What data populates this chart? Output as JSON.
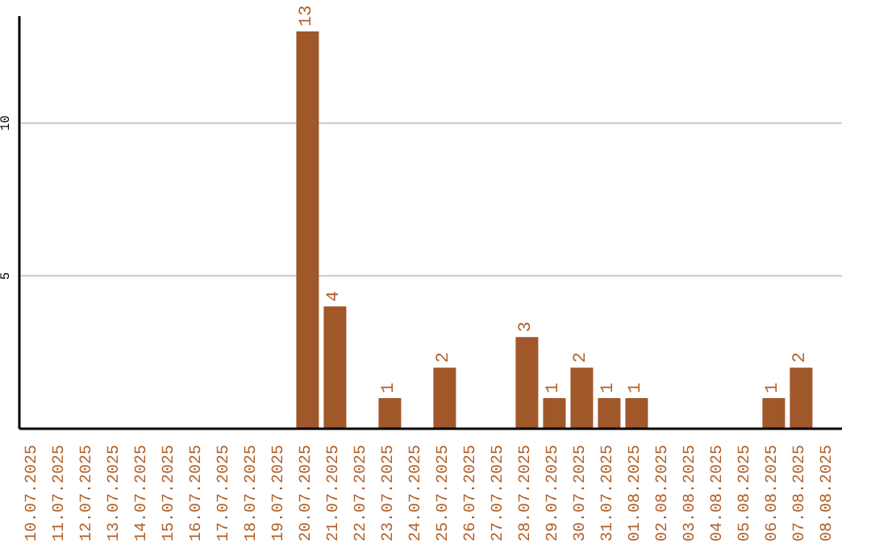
{
  "chart_data": {
    "type": "bar",
    "categories": [
      "10.07.2025",
      "11.07.2025",
      "12.07.2025",
      "13.07.2025",
      "14.07.2025",
      "15.07.2025",
      "16.07.2025",
      "17.07.2025",
      "18.07.2025",
      "19.07.2025",
      "20.07.2025",
      "21.07.2025",
      "22.07.2025",
      "23.07.2025",
      "24.07.2025",
      "25.07.2025",
      "26.07.2025",
      "27.07.2025",
      "28.07.2025",
      "29.07.2025",
      "30.07.2025",
      "31.07.2025",
      "01.08.2025",
      "02.08.2025",
      "03.08.2025",
      "04.08.2025",
      "05.08.2025",
      "06.08.2025",
      "07.08.2025",
      "08.08.2025"
    ],
    "values": [
      0,
      0,
      0,
      0,
      0,
      0,
      0,
      0,
      0,
      0,
      13,
      4,
      0,
      1,
      0,
      2,
      0,
      0,
      3,
      1,
      2,
      1,
      1,
      0,
      0,
      0,
      0,
      1,
      2,
      0
    ],
    "value_labels": [
      null,
      null,
      null,
      null,
      null,
      null,
      null,
      null,
      null,
      null,
      "13",
      "4",
      null,
      "1",
      null,
      "2",
      null,
      null,
      "3",
      "1",
      "2",
      "1",
      "1",
      null,
      null,
      null,
      null,
      "1",
      "2",
      null
    ],
    "color": "#a0572a",
    "ylim": [
      0,
      13.5
    ],
    "yticks": [
      5,
      10
    ],
    "grid": "y"
  }
}
